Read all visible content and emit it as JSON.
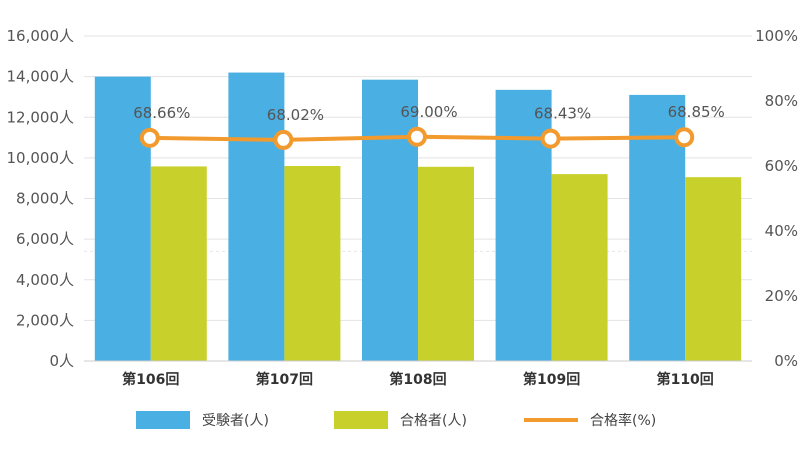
{
  "chart_data": {
    "type": "bar",
    "categories": [
      "第106回",
      "第107回",
      "第108回",
      "第109回",
      "第110回"
    ],
    "series": [
      {
        "name": "受験者(人)",
        "type": "bar",
        "axis": "left",
        "color": "#4ab0e4",
        "values": [
          14000,
          14200,
          13850,
          13350,
          13100
        ]
      },
      {
        "name": "合格者(人)",
        "type": "bar",
        "axis": "left",
        "color": "#c8d12c",
        "values": [
          9580,
          9600,
          9560,
          9200,
          9050
        ]
      },
      {
        "name": "合格率(%)",
        "type": "line",
        "axis": "right",
        "color": "#f29a2e",
        "values": [
          68.66,
          68.02,
          69.0,
          68.43,
          68.85
        ],
        "labels": [
          "68.66%",
          "68.02%",
          "69.00%",
          "68.43%",
          "68.85%"
        ]
      }
    ],
    "y_left": {
      "min": 0,
      "max": 16000,
      "ticks": [
        "0人",
        "2,000人",
        "4,000人",
        "6,000人",
        "8,000人",
        "10,000人",
        "12,000人",
        "14,000人",
        "16,000人"
      ]
    },
    "y_right": {
      "min": 0,
      "max": 100,
      "ticks": [
        "0%",
        "20%",
        "40%",
        "60%",
        "80%",
        "100%"
      ]
    },
    "grid": true,
    "legend_position": "bottom"
  }
}
